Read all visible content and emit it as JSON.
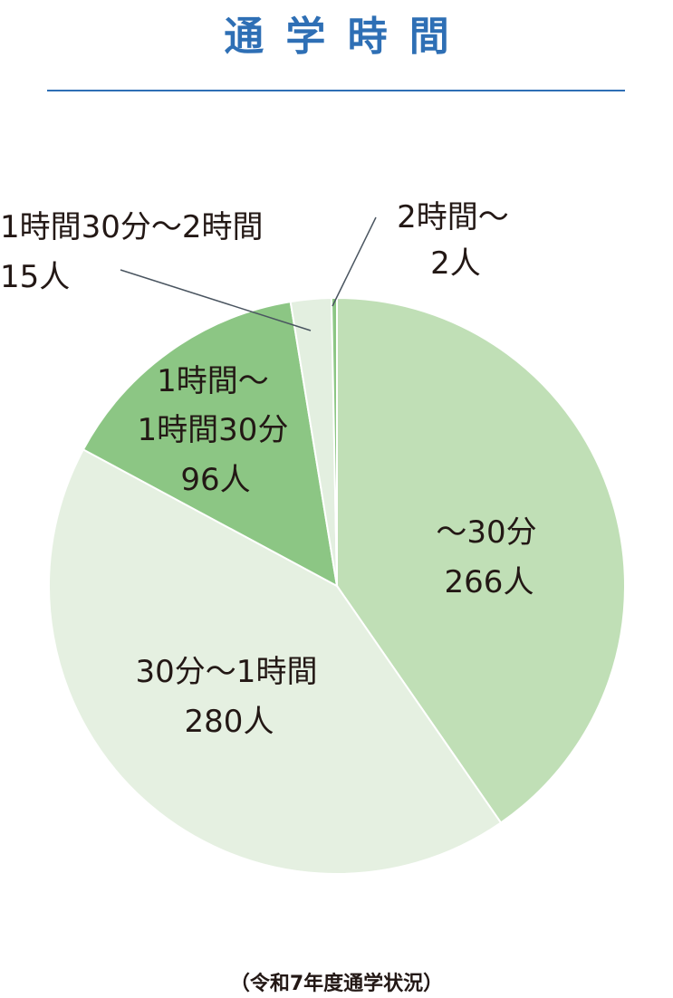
{
  "chart_data": {
    "type": "pie",
    "title": "通学時間",
    "footnote": "（令和7年度通学状況）",
    "categories": [
      "～30分",
      "30分～1時間",
      "1時間～\n1時間30分",
      "1時間30分～2時間",
      "2時間～"
    ],
    "values": [
      266,
      280,
      96,
      15,
      2
    ],
    "value_labels": [
      "266人",
      "280人",
      "96人",
      "15人",
      "2人"
    ],
    "colors": [
      "#c0dfb6",
      "#e5f0e1",
      "#8cc684",
      "#e3efe0",
      "#8cc684"
    ]
  }
}
